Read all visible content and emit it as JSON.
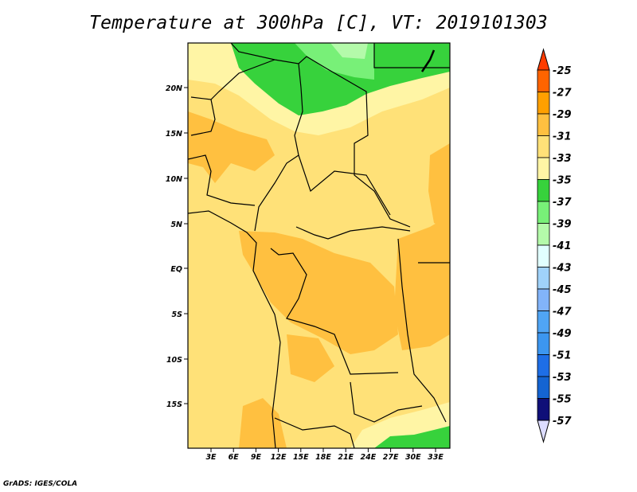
{
  "title": "Temperature at 300hPa [C], VT: 2019101303",
  "footer": "GrADS: IGES/COLA",
  "map": {
    "variable": "Temperature at 300hPa",
    "units": "C",
    "lat_labels": [
      "20N",
      "15N",
      "10N",
      "5N",
      "EQ",
      "5S",
      "10S",
      "15S"
    ],
    "lon_labels": [
      "3E",
      "6E",
      "9E",
      "12E",
      "15E",
      "18E",
      "21E",
      "24E",
      "27E",
      "30E",
      "33E"
    ]
  },
  "colorbar": {
    "levels": [
      "-25",
      "-27",
      "-29",
      "-31",
      "-33",
      "-35",
      "-37",
      "-39",
      "-41",
      "-43",
      "-45",
      "-47",
      "-49",
      "-51",
      "-53",
      "-55",
      "-57"
    ],
    "over_color": "#ff3c00",
    "under_color": "#dcdcff",
    "colors": [
      "#ff6400",
      "#ffa000",
      "#ffc040",
      "#ffe178",
      "#fff5a5",
      "#37d23c",
      "#78f078",
      "#b4faaa",
      "#e1ffff",
      "#a0d2fa",
      "#82b4fa",
      "#50a5f5",
      "#3c96f0",
      "#1e6ee6",
      "#1464d2",
      "#0f0f78"
    ]
  }
}
